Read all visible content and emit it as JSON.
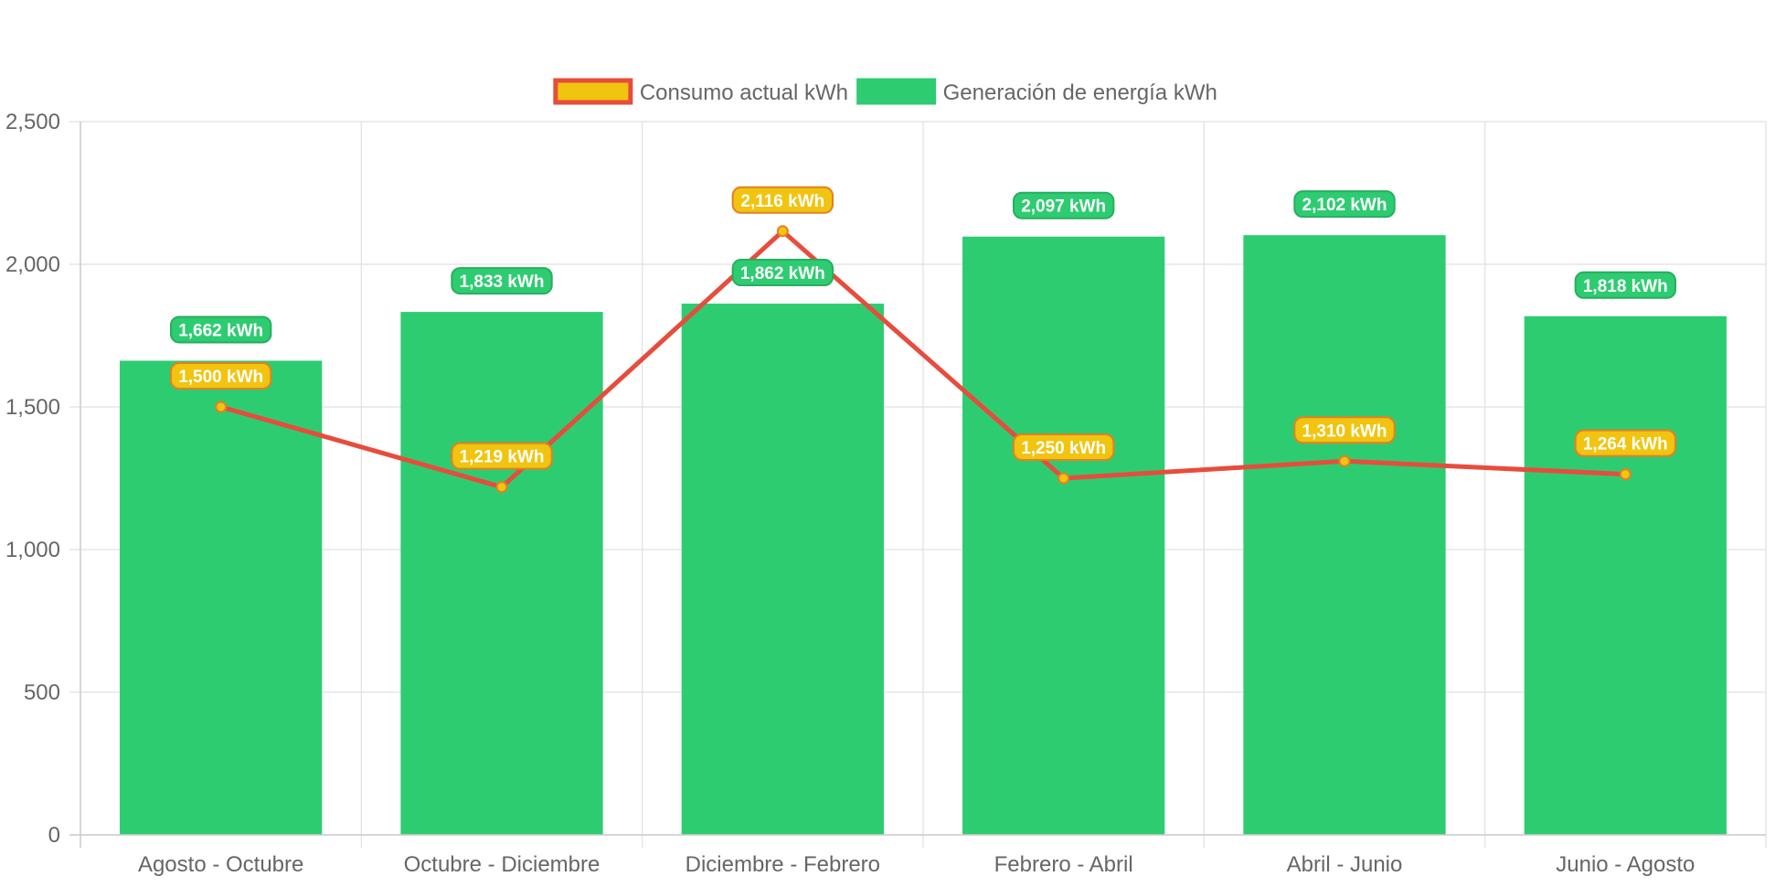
{
  "chart_data": {
    "type": "bar",
    "categories": [
      "Agosto - Octubre",
      "Octubre - Diciembre",
      "Diciembre - Febrero",
      "Febrero - Abril",
      "Abril - Junio",
      "Junio - Agosto"
    ],
    "series": [
      {
        "name": "Generación de energía kWh",
        "type": "bar",
        "values": [
          1662,
          1833,
          1862,
          2097,
          2102,
          1818
        ],
        "labels": [
          "1,662 kWh",
          "1,833 kWh",
          "1,862 kWh",
          "2,097 kWh",
          "2,102 kWh",
          "1,818 kWh"
        ],
        "color": "#2ecc71",
        "label_border": "#27ae60"
      },
      {
        "name": "Consumo actual kWh",
        "type": "line",
        "values": [
          1500,
          1219,
          2116,
          1250,
          1310,
          1264
        ],
        "labels": [
          "1,500 kWh",
          "1,219 kWh",
          "2,116 kWh",
          "1,250 kWh",
          "1,310 kWh",
          "1,264 kWh"
        ],
        "color": "#e74c3c",
        "fill": "#f1c40f",
        "label_border": "#e67e22"
      }
    ],
    "legend": [
      {
        "label": "Consumo actual kWh",
        "fill": "#f1c40f",
        "stroke": "#e74c3c"
      },
      {
        "label": "Generación de energía kWh",
        "fill": "#2ecc71",
        "stroke": "#2ecc71"
      }
    ],
    "legend_position": "top",
    "ylim": [
      0,
      2500
    ],
    "yticks": [
      0,
      500,
      1000,
      1500,
      2000,
      2500
    ],
    "ytick_labels": [
      "0",
      "500",
      "1,000",
      "1,500",
      "2,000",
      "2,500"
    ],
    "grid": true,
    "title": "",
    "xlabel": "",
    "ylabel": ""
  }
}
